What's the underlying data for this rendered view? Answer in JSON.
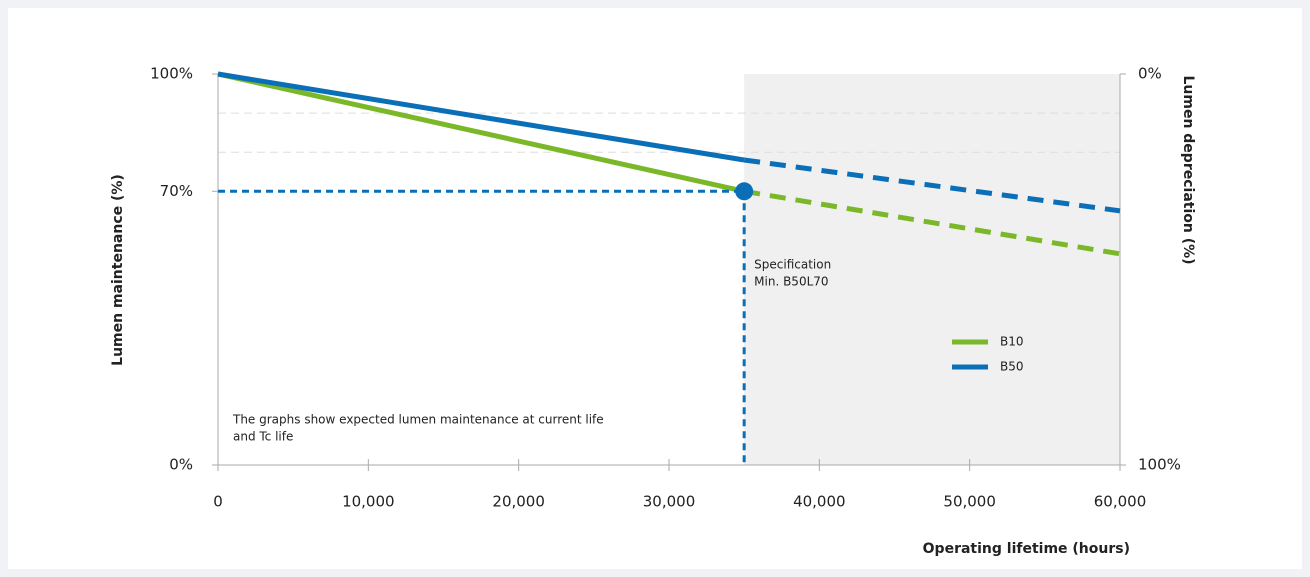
{
  "chart_data": {
    "type": "line",
    "y_label": "Lumen maintenance (%)",
    "y2_label": "Lumen depreciation (%)",
    "x_label": "Operating lifetime (hours)",
    "x": [
      0,
      35000,
      60000
    ],
    "series": [
      {
        "name": "B10",
        "color": "#7ab829",
        "values": [
          100,
          70,
          54
        ]
      },
      {
        "name": "B50",
        "color": "#0b6fb8",
        "values": [
          100,
          78,
          65
        ]
      }
    ],
    "dashed_after": 35000,
    "shaded_region": [
      35000,
      60000
    ],
    "xlim": [
      0,
      60000
    ],
    "xticks": [
      0,
      {
        "value": 10000,
        "label": "10,000"
      },
      {
        "value": 20000,
        "label": "20,000"
      },
      {
        "value": 30000,
        "label": "30,000"
      },
      {
        "value": 40000,
        "label": "40,000"
      },
      {
        "value": 50000,
        "label": "50,000"
      },
      {
        "value": 60000,
        "label": "60,000"
      }
    ],
    "ylim": [
      0,
      100
    ],
    "yticks": [
      {
        "value": 0,
        "label": "0%"
      },
      {
        "value": 70,
        "label": "70%"
      },
      {
        "value": 100,
        "label": "100%"
      }
    ],
    "y2lim": [
      100,
      0
    ],
    "y2ticks": [
      {
        "value": 0,
        "label": "0%"
      },
      {
        "value": 100,
        "label": "100%"
      }
    ],
    "grid_lines": [
      80,
      90
    ],
    "specification_point": {
      "x": 35000,
      "y": 70,
      "color": "#0b6fb8"
    },
    "specification_text": [
      "Specification",
      "Min. B50L70"
    ],
    "note": [
      "The graphs show expected lumen maintenance at current life",
      "and Tc life"
    ]
  }
}
